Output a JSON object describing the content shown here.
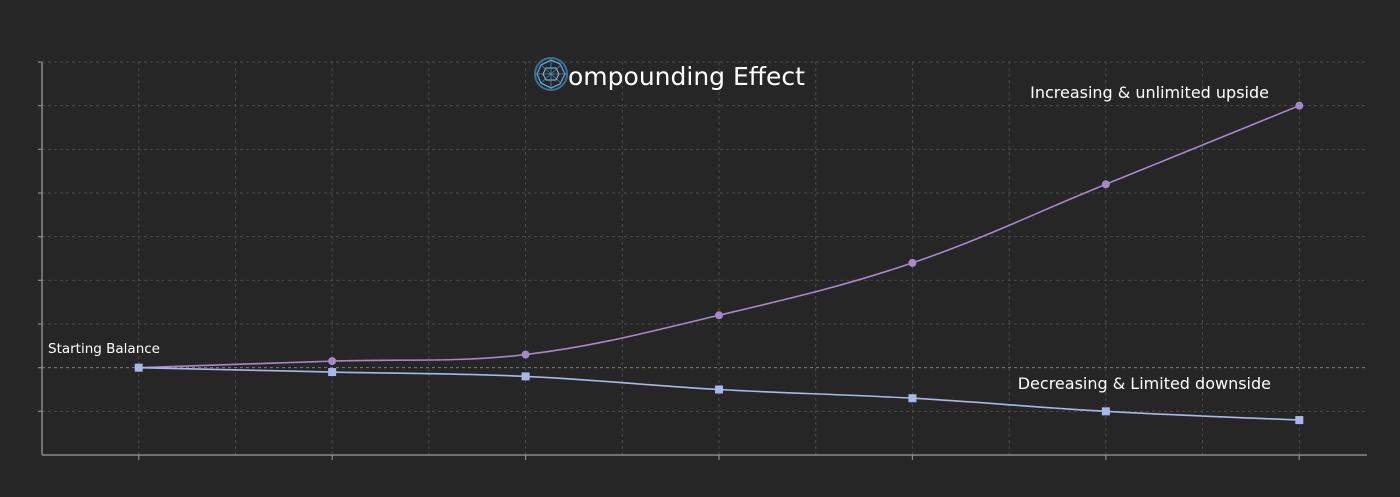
{
  "chart_data": {
    "type": "line",
    "title": "ompounding Effect",
    "title_logo_letter": "C",
    "xlabel": "",
    "ylabel": "",
    "x": [
      0,
      1,
      2,
      3,
      4,
      5,
      6
    ],
    "xlim": [
      -0.5,
      6.35
    ],
    "ylim": [
      -2,
      7
    ],
    "grid": true,
    "series": [
      {
        "name": "",
        "marker": "circle",
        "color": "#a887c9",
        "values": [
          0,
          0.15,
          0.3,
          1.2,
          2.4,
          4.2,
          6.0
        ]
      },
      {
        "name": "",
        "marker": "square",
        "color": "#a7b8ec",
        "values": [
          0,
          -0.1,
          -0.2,
          -0.5,
          -0.7,
          -1.0,
          -1.2
        ]
      }
    ],
    "annotations": {
      "start": "Starting Balance",
      "upside": "Increasing & unlimited upside",
      "downside": "Decreasing & Limited downside"
    },
    "colors": {
      "background": "#262626",
      "axis": "#8a8a8a",
      "grid": "#4a4a4a",
      "text": "#ffffff",
      "logo": "#5aa9d8"
    }
  }
}
